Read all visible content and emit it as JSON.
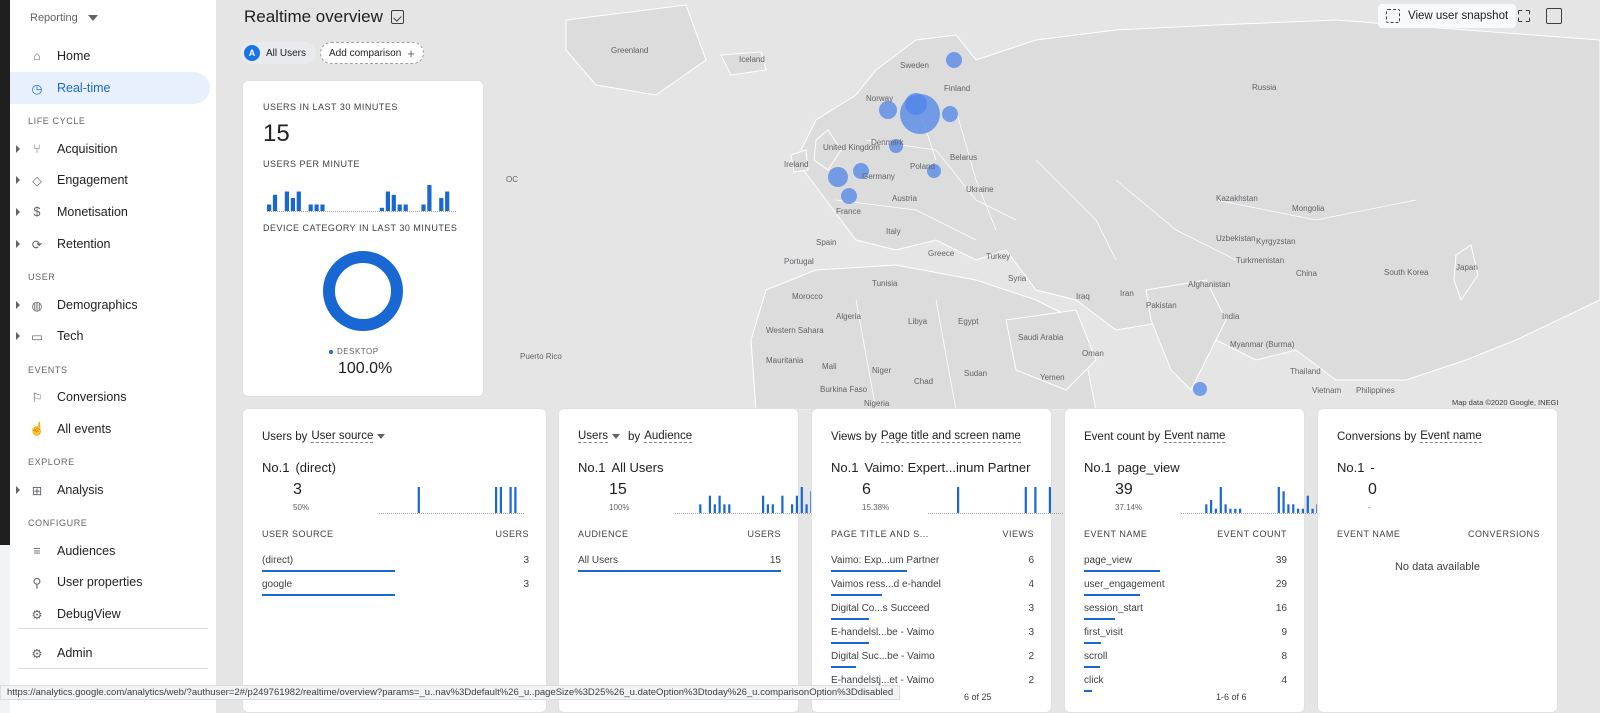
{
  "sidebar": {
    "reporting": "Reporting",
    "items": [
      {
        "label": "Home",
        "icon": "home-icon"
      },
      {
        "label": "Real-time",
        "icon": "clock-icon"
      },
      {
        "label": "Acquisition",
        "icon": "acquisition-icon"
      },
      {
        "label": "Engagement",
        "icon": "tag-icon"
      },
      {
        "label": "Monetisation",
        "icon": "dollar-icon"
      },
      {
        "label": "Retention",
        "icon": "retention-icon"
      },
      {
        "label": "Demographics",
        "icon": "globe-icon"
      },
      {
        "label": "Tech",
        "icon": "devices-icon"
      },
      {
        "label": "Conversions",
        "icon": "flag-icon"
      },
      {
        "label": "All events",
        "icon": "touch-icon"
      },
      {
        "label": "Analysis",
        "icon": "analysis-icon"
      },
      {
        "label": "Audiences",
        "icon": "audiences-icon"
      },
      {
        "label": "User properties",
        "icon": "user-properties-icon"
      },
      {
        "label": "DebugView",
        "icon": "bug-icon"
      },
      {
        "label": "Admin",
        "icon": "gear-icon"
      }
    ],
    "sections": [
      "LIFE CYCLE",
      "USER",
      "EVENTS",
      "EXPLORE",
      "CONFIGURE"
    ]
  },
  "header": {
    "title": "Realtime overview",
    "chip_all_badge": "A",
    "chip_all": "All Users",
    "add_comparison": "Add comparison",
    "snapshot": "View user snapshot"
  },
  "map": {
    "labels": [
      "Greenland",
      "Iceland",
      "Sweden",
      "Finland",
      "Norway",
      "Russia",
      "United Kingdom",
      "Denmark",
      "Ireland",
      "Belarus",
      "Germany",
      "Poland",
      "Ukraine",
      "Kazakhstan",
      "Mongolia",
      "France",
      "Austria",
      "Spain",
      "Italy",
      "Portugal",
      "Greece",
      "Turkey",
      "Uzbekistan",
      "Kyrgyzstan",
      "Turkmenistan",
      "Syria",
      "Tunisia",
      "Iraq",
      "Iran",
      "Afghanistan",
      "Morocco",
      "Algeria",
      "Libya",
      "Egypt",
      "Pakistan",
      "China",
      "South Korea",
      "Japan",
      "India",
      "Saudi Arabia",
      "Western Sahara",
      "Mauritania",
      "Mali",
      "Niger",
      "Chad",
      "Sudan",
      "Yemen",
      "Oman",
      "Myanmar (Burma)",
      "Thailand",
      "Vietnam",
      "Philippines",
      "Burkina Faso",
      "Nigeria",
      "Puerto Rico",
      "OC"
    ],
    "credit": "Map data ©2020 Google, INEGI"
  },
  "users_card": {
    "label_30": "USERS IN LAST 30 MINUTES",
    "value_30": "15",
    "label_per_minute": "USERS PER MINUTE",
    "per_minute": [
      2,
      5,
      0,
      6,
      4,
      6,
      0,
      2,
      2,
      2,
      0,
      0,
      0,
      0,
      0,
      0,
      0,
      0,
      0,
      1,
      6,
      5,
      2,
      2,
      0,
      0,
      2,
      8,
      0,
      4,
      6,
      0
    ],
    "label_device": "DEVICE CATEGORY IN LAST 30 MINUTES",
    "device_label": "DESKTOP",
    "device_pct": "100.0%"
  },
  "cards": [
    {
      "title_a": "Users by",
      "title_b": "User source",
      "no1_rank": "No.1",
      "no1_name": "(direct)",
      "no1_value": "3",
      "no1_pct": "50%",
      "col1": "USER SOURCE",
      "col2": "USERS",
      "rows": [
        {
          "name": "(direct)",
          "value": "3",
          "share": 1.0
        },
        {
          "name": "google",
          "value": "3",
          "share": 1.0
        }
      ],
      "spark": [
        0,
        0,
        0,
        0,
        0,
        0,
        0,
        0,
        6,
        0,
        0,
        0,
        0,
        0,
        0,
        0,
        0,
        0,
        0,
        0,
        0,
        0,
        0,
        0,
        6,
        6,
        0,
        6,
        6,
        0
      ]
    },
    {
      "title_a": "Users",
      "title_b": "Audience",
      "title_mid": "by",
      "no1_rank": "No.1",
      "no1_name": "All Users",
      "no1_value": "15",
      "no1_pct": "100%",
      "col1": "AUDIENCE",
      "col2": "USERS",
      "rows": [
        {
          "name": "All Users",
          "value": "15",
          "share": 1.0
        }
      ],
      "spark": [
        0,
        0,
        0,
        0,
        0,
        2,
        0,
        4,
        2,
        4,
        2,
        2,
        0,
        0,
        0,
        0,
        0,
        0,
        4,
        2,
        2,
        0,
        4,
        0,
        2,
        4,
        6,
        2,
        5,
        2
      ]
    },
    {
      "title_a": "Views by",
      "title_b": "Page title and screen name",
      "no1_rank": "No.1",
      "no1_name": "Vaimo: Expert...inum Partner",
      "no1_value": "6",
      "no1_pct": "15.38%",
      "col1": "PAGE TITLE AND S...",
      "col2": "VIEWS",
      "rows": [
        {
          "name": "Vaimo: Exp...um Partner",
          "value": "6",
          "share": 1.0
        },
        {
          "name": "Vaimos ress...d e-handel",
          "value": "4",
          "share": 0.67
        },
        {
          "name": "Digital Co...s Succeed",
          "value": "3",
          "share": 0.5
        },
        {
          "name": "E-handelsl...be - Vaimo",
          "value": "3",
          "share": 0.5
        },
        {
          "name": "Digital Suc...be - Vaimo",
          "value": "2",
          "share": 0.33
        },
        {
          "name": "E-handelstj...et - Vaimo",
          "value": "2",
          "share": 0.33
        }
      ],
      "spark": [
        0,
        0,
        0,
        0,
        0,
        0,
        6,
        0,
        0,
        0,
        0,
        0,
        0,
        0,
        0,
        0,
        0,
        0,
        0,
        0,
        6,
        0,
        6,
        0,
        0,
        6,
        0,
        0,
        0,
        6
      ]
    },
    {
      "title_a": "Event count by",
      "title_b": "Event name",
      "no1_rank": "No.1",
      "no1_name": "page_view",
      "no1_value": "39",
      "no1_pct": "37.14%",
      "col1": "EVENT NAME",
      "col2": "EVENT COUNT",
      "rows": [
        {
          "name": "page_view",
          "value": "39",
          "share": 1.0
        },
        {
          "name": "user_engagement",
          "value": "29",
          "share": 0.74
        },
        {
          "name": "session_start",
          "value": "16",
          "share": 0.41
        },
        {
          "name": "first_visit",
          "value": "9",
          "share": 0.23
        },
        {
          "name": "scroll",
          "value": "8",
          "share": 0.21
        },
        {
          "name": "click",
          "value": "4",
          "share": 0.1
        }
      ],
      "spark": [
        0,
        0,
        0,
        0,
        0,
        2,
        3,
        1,
        6,
        2,
        1,
        1,
        1,
        0,
        0,
        0,
        0,
        0,
        0,
        0,
        6,
        5,
        2,
        2,
        1,
        1,
        4,
        1,
        2,
        1
      ]
    },
    {
      "title_a": "Conversions by",
      "title_b": "Event name",
      "no1_rank": "No.1",
      "no1_name": "-",
      "no1_value": "0",
      "no1_pct": "-",
      "col1": "EVENT NAME",
      "col2": "CONVERSIONS",
      "empty": "No data available",
      "rows": [],
      "spark": []
    }
  ],
  "status_url": "https://analytics.google.com/analytics/web/?authuser=2#/p249761982/realtime/overview?params=_u..nav%3Ddefault%26_u..pageSize%3D25%26_u.dateOption%3Dtoday%26_u.comparisonOption%3Ddisabled",
  "pager_views": "6 of 25",
  "pager_events": "1-6 of 6",
  "colors": {
    "accent": "#1967d2",
    "map_bubble": "#4f84e8"
  }
}
